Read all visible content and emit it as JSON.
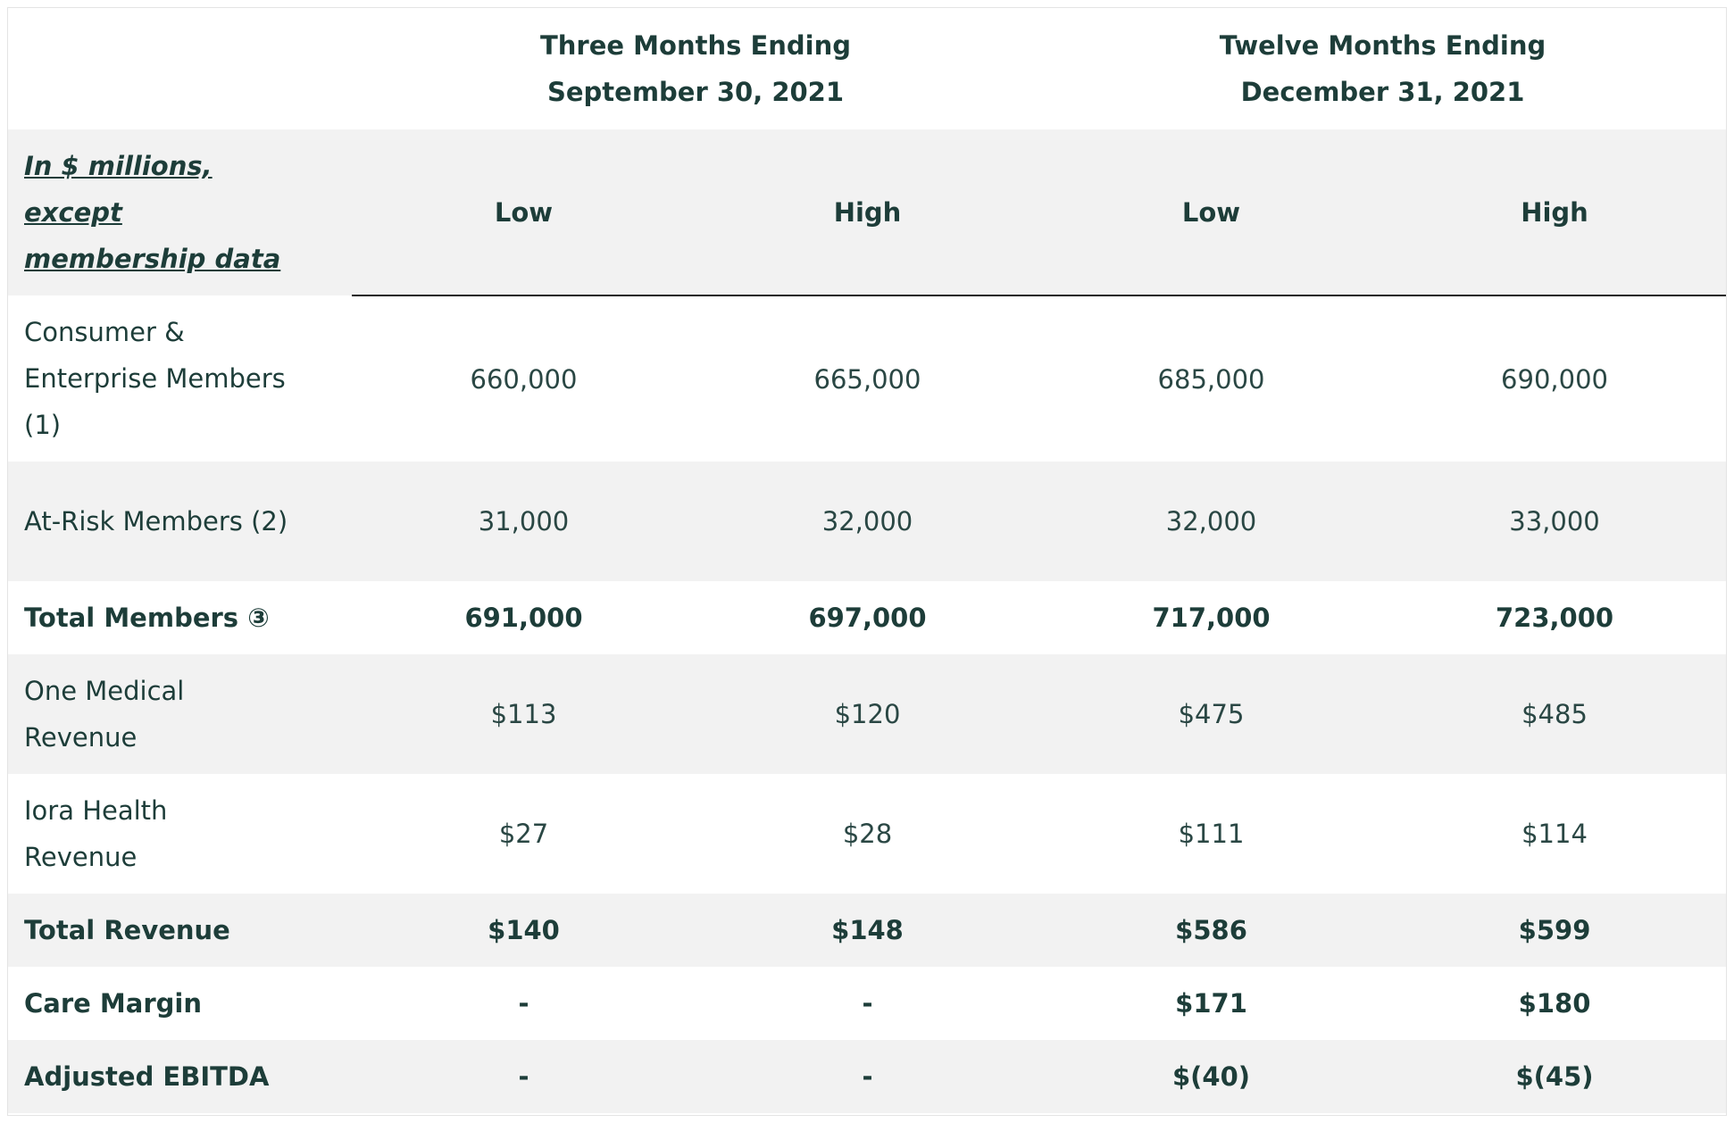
{
  "periods": [
    {
      "line1": "Three Months Ending",
      "line2": "September 30, 2021"
    },
    {
      "line1": "Twelve Months Ending",
      "line2": "December 31, 2021"
    }
  ],
  "unit_note": "In $ millions, except membership data",
  "column_headers": [
    "Low",
    "High",
    "Low",
    "High"
  ],
  "rows": [
    {
      "label": "Consumer & Enterprise Members (1)",
      "values": [
        "660,000",
        "665,000",
        "685,000",
        "690,000"
      ],
      "bold": false
    },
    {
      "label": "At-Risk Members (2)",
      "values": [
        "31,000",
        "32,000",
        "32,000",
        "33,000"
      ],
      "bold": false
    },
    {
      "label": "Total Members ③",
      "values": [
        "691,000",
        "697,000",
        "717,000",
        "723,000"
      ],
      "bold": true
    },
    {
      "label": "One Medical Revenue",
      "values": [
        "$113",
        "$120",
        "$475",
        "$485"
      ],
      "bold": false
    },
    {
      "label": "Iora Health Revenue",
      "values": [
        "$27",
        "$28",
        "$111",
        "$114"
      ],
      "bold": false
    },
    {
      "label": "Total Revenue",
      "values": [
        "$140",
        "$148",
        "$586",
        "$599"
      ],
      "bold": true
    },
    {
      "label": "Care Margin",
      "values": [
        "-",
        "-",
        "$171",
        "$180"
      ],
      "bold": true
    },
    {
      "label": "Adjusted EBITDA",
      "values": [
        "-",
        "-",
        "$(40)",
        "$(45)"
      ],
      "bold": true
    }
  ],
  "colors": {
    "text": "#1d3d39",
    "stripe": "#f2f2f2",
    "rule": "#1b1b1b"
  }
}
